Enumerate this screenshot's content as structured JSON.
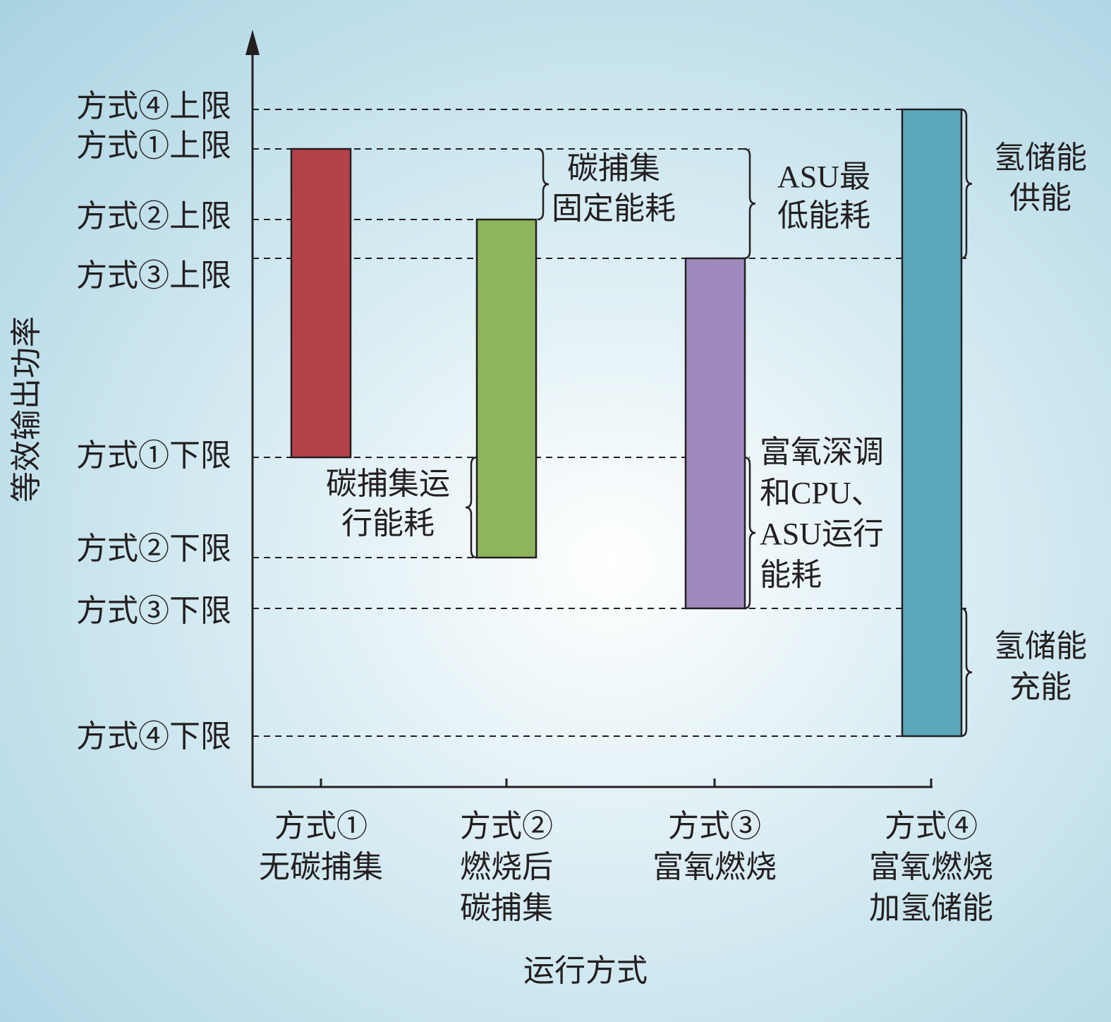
{
  "y_axis_label": "等效输出功率",
  "x_axis_label": "运行方式",
  "levels": [
    "方式④上限",
    "方式①上限",
    "方式②上限",
    "方式③上限",
    "方式①下限",
    "方式②下限",
    "方式③下限",
    "方式④下限"
  ],
  "categories": [
    [
      "方式①",
      "无碳捕集"
    ],
    [
      "方式②",
      "燃烧后",
      "碳捕集"
    ],
    [
      "方式③",
      "富氧燃烧"
    ],
    [
      "方式④",
      "富氧燃烧",
      "加氢储能"
    ]
  ],
  "annotations": [
    [
      "碳捕集",
      "固定能耗"
    ],
    [
      "ASU最",
      "低能耗"
    ],
    [
      "氢储能",
      "供能"
    ],
    [
      "碳捕集运",
      "行能耗"
    ],
    [
      "富氧深调",
      "和CPU、",
      "ASU运行",
      "能耗"
    ],
    [
      "氢储能",
      "充能"
    ]
  ]
}
